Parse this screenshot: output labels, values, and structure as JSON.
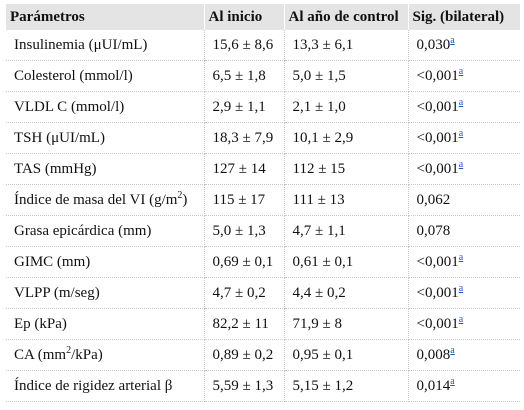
{
  "headers": {
    "param": "Parámetros",
    "start": "Al inicio",
    "year": "Al año de control",
    "sig": "Sig. (bilateral)"
  },
  "rows": [
    {
      "param": "Insulinemia (μUI/mL)",
      "param_sup": "",
      "param_suffix": "",
      "start": "15,6 ± 8,6",
      "year": "13,3 ± 6,1",
      "sig": "0,030",
      "note": "a"
    },
    {
      "param": "Colesterol (mmol/l)",
      "param_sup": "",
      "param_suffix": "",
      "start": "6,5 ± 1,8",
      "year": "5,0 ± 1,5",
      "sig": "<0,001",
      "note": "a"
    },
    {
      "param": "VLDL C (mmol/l)",
      "param_sup": "",
      "param_suffix": "",
      "start": "2,9 ± 1,1",
      "year": "2,1 ± 1,0",
      "sig": "<0,001",
      "note": "a"
    },
    {
      "param": "TSH (μUI/mL)",
      "param_sup": "",
      "param_suffix": "",
      "start": "18,3 ± 7,9",
      "year": "10,1 ± 2,9",
      "sig": "<0,001",
      "note": "a"
    },
    {
      "param": "TAS (mmHg)",
      "param_sup": "",
      "param_suffix": "",
      "start": "127 ± 14",
      "year": "112 ± 15",
      "sig": "<0,001",
      "note": "a"
    },
    {
      "param": "Índice de masa del VI (g/m",
      "param_sup": "2",
      "param_suffix": ")",
      "start": "115 ± 17",
      "year": "111 ± 13",
      "sig": "0,062",
      "note": ""
    },
    {
      "param": "Grasa epicárdica (mm)",
      "param_sup": "",
      "param_suffix": "",
      "start": "5,0 ± 1,3",
      "year": "4,7 ± 1,1",
      "sig": "0,078",
      "note": ""
    },
    {
      "param": "GIMC (mm)",
      "param_sup": "",
      "param_suffix": "",
      "start": "0,69 ± 0,1",
      "year": "0,61 ± 0,1",
      "sig": "<0,001",
      "note": "a"
    },
    {
      "param": "VLPP (m/seg)",
      "param_sup": "",
      "param_suffix": "",
      "start": "4,7 ± 0,2",
      "year": "4,4 ± 0,2",
      "sig": "<0,001",
      "note": "a"
    },
    {
      "param": "Ep (kPa)",
      "param_sup": "",
      "param_suffix": "",
      "start": "82,2 ± 11",
      "year": "71,9 ± 8",
      "sig": "<0,001",
      "note": "a"
    },
    {
      "param": "CA (mm",
      "param_sup": "2",
      "param_suffix": "/kPa)",
      "start": "0,89 ± 0,2",
      "year": "0,95 ± 0,1",
      "sig": "0,008",
      "note": "a"
    },
    {
      "param": "Índice de rigidez arterial β",
      "param_sup": "",
      "param_suffix": "",
      "start": "5,59 ± 1,3",
      "year": "5,15 ± 1,2",
      "sig": "0,014",
      "note": "a"
    }
  ]
}
